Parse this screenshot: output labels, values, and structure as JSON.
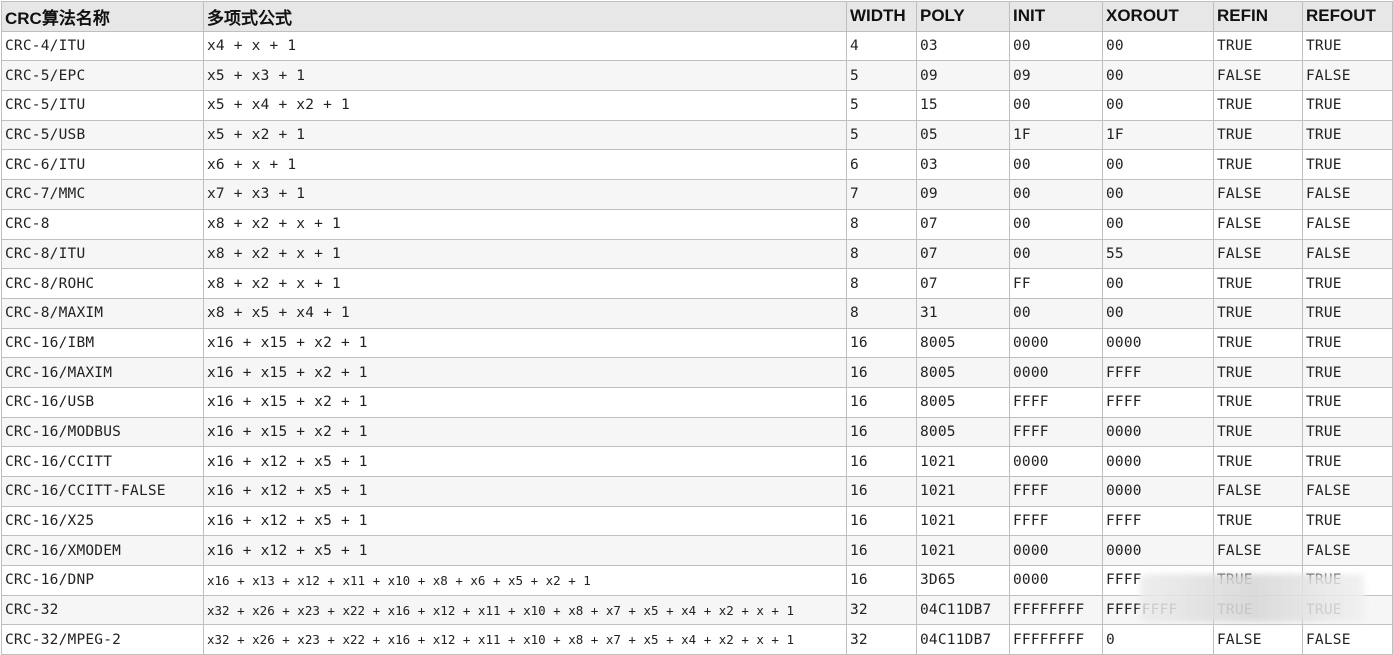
{
  "headers": [
    "CRC算法名称",
    "多项式公式",
    "WIDTH",
    "POLY",
    "INIT",
    "XOROUT",
    "REFIN",
    "REFOUT"
  ],
  "rows": [
    [
      "CRC-4/ITU",
      "x4 + x + 1",
      "4",
      "03",
      "00",
      "00",
      "TRUE",
      "TRUE"
    ],
    [
      "CRC-5/EPC",
      "x5 + x3 + 1",
      "5",
      "09",
      "09",
      "00",
      "FALSE",
      "FALSE"
    ],
    [
      "CRC-5/ITU",
      "x5 + x4 + x2 + 1",
      "5",
      "15",
      "00",
      "00",
      "TRUE",
      "TRUE"
    ],
    [
      "CRC-5/USB",
      "x5 + x2 + 1",
      "5",
      "05",
      "1F",
      "1F",
      "TRUE",
      "TRUE"
    ],
    [
      "CRC-6/ITU",
      "x6 + x + 1",
      "6",
      "03",
      "00",
      "00",
      "TRUE",
      "TRUE"
    ],
    [
      "CRC-7/MMC",
      "x7 + x3 + 1",
      "7",
      "09",
      "00",
      "00",
      "FALSE",
      "FALSE"
    ],
    [
      "CRC-8",
      "x8 + x2 + x + 1",
      "8",
      "07",
      "00",
      "00",
      "FALSE",
      "FALSE"
    ],
    [
      "CRC-8/ITU",
      "x8 + x2 + x + 1",
      "8",
      "07",
      "00",
      "55",
      "FALSE",
      "FALSE"
    ],
    [
      "CRC-8/ROHC",
      "x8 + x2 + x + 1",
      "8",
      "07",
      "FF",
      "00",
      "TRUE",
      "TRUE"
    ],
    [
      "CRC-8/MAXIM",
      "x8 + x5 + x4 + 1",
      "8",
      "31",
      "00",
      "00",
      "TRUE",
      "TRUE"
    ],
    [
      "CRC-16/IBM",
      "x16 + x15 + x2 + 1",
      "16",
      "8005",
      "0000",
      "0000",
      "TRUE",
      "TRUE"
    ],
    [
      "CRC-16/MAXIM",
      "x16 + x15 + x2 + 1",
      "16",
      "8005",
      "0000",
      "FFFF",
      "TRUE",
      "TRUE"
    ],
    [
      "CRC-16/USB",
      "x16 + x15 + x2 + 1",
      "16",
      "8005",
      "FFFF",
      "FFFF",
      "TRUE",
      "TRUE"
    ],
    [
      "CRC-16/MODBUS",
      "x16 + x15 + x2 + 1",
      "16",
      "8005",
      "FFFF",
      "0000",
      "TRUE",
      "TRUE"
    ],
    [
      "CRC-16/CCITT",
      "x16 + x12 + x5 + 1",
      "16",
      "1021",
      "0000",
      "0000",
      "TRUE",
      "TRUE"
    ],
    [
      "CRC-16/CCITT-FALSE",
      "x16 + x12 + x5 + 1",
      "16",
      "1021",
      "FFFF",
      "0000",
      "FALSE",
      "FALSE"
    ],
    [
      "CRC-16/X25",
      "x16 + x12 + x5 + 1",
      "16",
      "1021",
      "FFFF",
      "FFFF",
      "TRUE",
      "TRUE"
    ],
    [
      "CRC-16/XMODEM",
      "x16 + x12 + x5 + 1",
      "16",
      "1021",
      "0000",
      "0000",
      "FALSE",
      "FALSE"
    ],
    [
      "CRC-16/DNP",
      "x16 + x13 + x12 + x11 + x10 + x8 + x6 + x5 + x2 + 1",
      "16",
      "3D65",
      "0000",
      "FFFF",
      "TRUE",
      "TRUE"
    ],
    [
      "CRC-32",
      "x32 + x26 + x23 + x22 + x16 + x12 + x11 + x10 + x8 + x7 + x5 + x4 + x2 + x + 1",
      "32",
      "04C11DB7",
      "FFFFFFFF",
      "FFFFFFFF",
      "TRUE",
      "TRUE"
    ],
    [
      "CRC-32/MPEG-2",
      "x32 + x26 + x23 + x22 + x16 + x12 + x11 + x10 + x8 + x7 + x5 + x4 + x2 + x + 1",
      "32",
      "04C11DB7",
      "FFFFFFFF",
      "0",
      "FALSE",
      "FALSE"
    ]
  ]
}
